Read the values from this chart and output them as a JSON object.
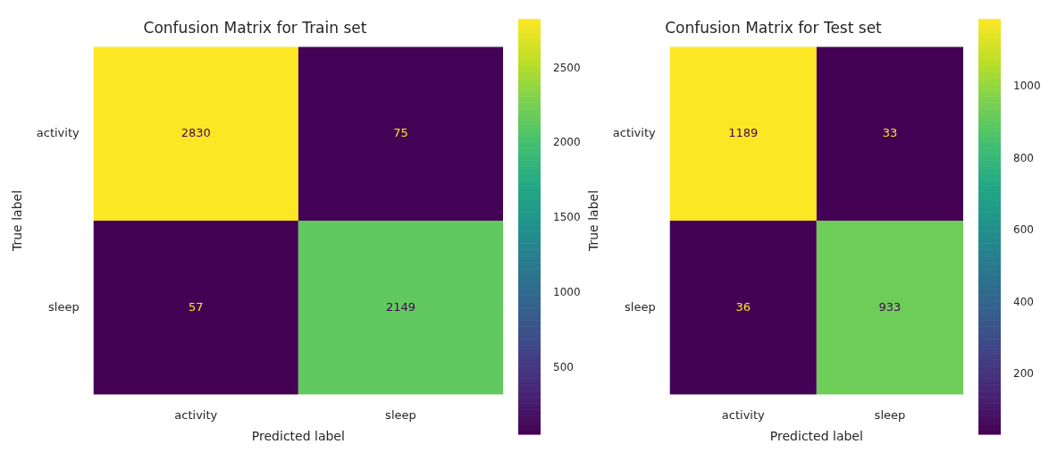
{
  "chart_data": [
    {
      "type": "heatmap",
      "title": "Confusion Matrix for Train set",
      "xlabel": "Predicted label",
      "ylabel": "True label",
      "categories": [
        "activity",
        "sleep"
      ],
      "y_categories": [
        "activity",
        "sleep"
      ],
      "cells": [
        [
          2830,
          75
        ],
        [
          57,
          2149
        ]
      ],
      "clim": [
        57,
        2830
      ],
      "cticks": [
        500,
        1000,
        1500,
        2000,
        2500
      ],
      "data_labels": true
    },
    {
      "type": "heatmap",
      "title": "Confusion Matrix for Test set",
      "xlabel": "Predicted label",
      "ylabel": "True label",
      "categories": [
        "activity",
        "sleep"
      ],
      "y_categories": [
        "activity",
        "sleep"
      ],
      "cells": [
        [
          1189,
          33
        ],
        [
          36,
          933
        ]
      ],
      "clim": [
        33,
        1189
      ],
      "cticks": [
        200,
        400,
        600,
        800,
        1000
      ],
      "data_labels": true
    }
  ]
}
